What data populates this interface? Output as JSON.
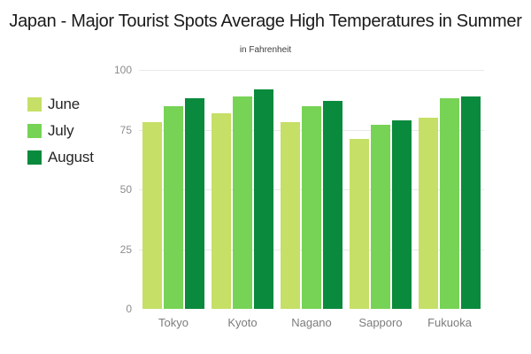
{
  "chart_data": {
    "type": "bar",
    "title": "Japan - Major Tourist Spots Average High Temperatures in Summer",
    "subtitle": "in Fahrenheit",
    "categories": [
      "Tokyo",
      "Kyoto",
      "Nagano",
      "Sapporo",
      "Fukuoka"
    ],
    "series": [
      {
        "name": "June",
        "color": "#c6df66",
        "values": [
          78,
          82,
          78,
          71,
          80
        ]
      },
      {
        "name": "July",
        "color": "#77d355",
        "values": [
          85,
          89,
          85,
          77,
          88
        ]
      },
      {
        "name": "August",
        "color": "#0a8a3d",
        "values": [
          88,
          92,
          87,
          79,
          89
        ]
      }
    ],
    "xlabel": "",
    "ylabel": "",
    "ylim": [
      0,
      100
    ],
    "yticks": [
      0,
      25,
      50,
      75,
      100
    ],
    "legend_position": "left",
    "grid": true,
    "grid_color": "#e9e9e9",
    "background_color": "#ffffff"
  }
}
